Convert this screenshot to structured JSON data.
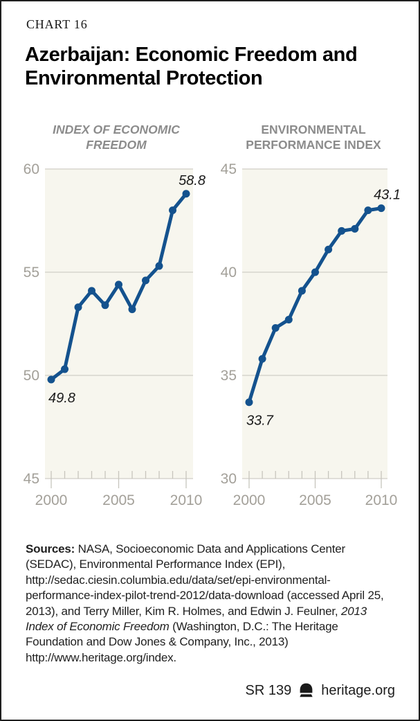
{
  "header": {
    "kicker": "CHART 16",
    "title_line1": "Azerbaijan: Economic Freedom and",
    "title_line2": "Environmental Protection"
  },
  "chart_data": [
    {
      "type": "line",
      "title": "INDEX OF ECONOMIC FREEDOM",
      "title_lines": [
        "INDEX OF ECONOMIC",
        "FREEDOM"
      ],
      "x": [
        2000,
        2001,
        2002,
        2003,
        2004,
        2005,
        2006,
        2007,
        2008,
        2009,
        2010
      ],
      "values": [
        49.8,
        50.3,
        53.3,
        54.1,
        53.4,
        54.4,
        53.2,
        54.6,
        55.3,
        58.0,
        58.8
      ],
      "ylim": [
        45,
        60
      ],
      "yticks": [
        60,
        55,
        50,
        45
      ],
      "xticks": [
        2000,
        2005,
        2010
      ],
      "xtick_labels": [
        "2000",
        "2005",
        "2010"
      ],
      "point_labels": {
        "first": "49.8",
        "last": "58.8"
      },
      "grid": true,
      "legend": "none"
    },
    {
      "type": "line",
      "title": "ENVIRONMENTAL PERFORMANCE INDEX",
      "title_lines": [
        "ENVIRONMENTAL",
        "PERFORMANCE INDEX"
      ],
      "x": [
        2000,
        2001,
        2002,
        2003,
        2004,
        2005,
        2006,
        2007,
        2008,
        2009,
        2010
      ],
      "values": [
        33.7,
        35.8,
        37.3,
        37.7,
        39.1,
        40.0,
        41.1,
        42.0,
        42.1,
        43.0,
        43.1
      ],
      "ylim": [
        30,
        45
      ],
      "yticks": [
        45,
        40,
        35,
        30
      ],
      "xticks": [
        2000,
        2005,
        2010
      ],
      "xtick_labels": [
        "2000",
        "2005",
        "2010"
      ],
      "point_labels": {
        "first": "33.7",
        "last": "43.1"
      },
      "grid": true,
      "legend": "none"
    }
  ],
  "sources": {
    "label": "Sources:",
    "text_before_italic": " NASA, Socioeconomic Data and Applications Center (SEDAC), Environmental Performance Index (EPI), http://sedac.ciesin.columbia.edu/data/set/epi-environmental-performance-index-pilot-trend-2012/data-download (accessed April 25, 2013), and Terry Miller, Kim R. Holmes, and Edwin J. Feulner, ",
    "italic_text": "2013 Index of Economic Freedom",
    "text_after_italic": " (Washington, D.C.: The Heritage Foundation and Dow Jones & Company, Inc., 2013) http://www.heritage.org/index."
  },
  "footer": {
    "report_id": "SR 139",
    "brand": "heritage.org",
    "logo": "liberty-bell-icon"
  },
  "colors": {
    "line": "#14528e",
    "plot_bg": "#f7f6ee",
    "grid": "#d0cec6",
    "tick": "#c7c5bd",
    "axis_text": "#a3a099",
    "chart_title": "#8c8c8c",
    "label_text": "#1d1d1d"
  }
}
